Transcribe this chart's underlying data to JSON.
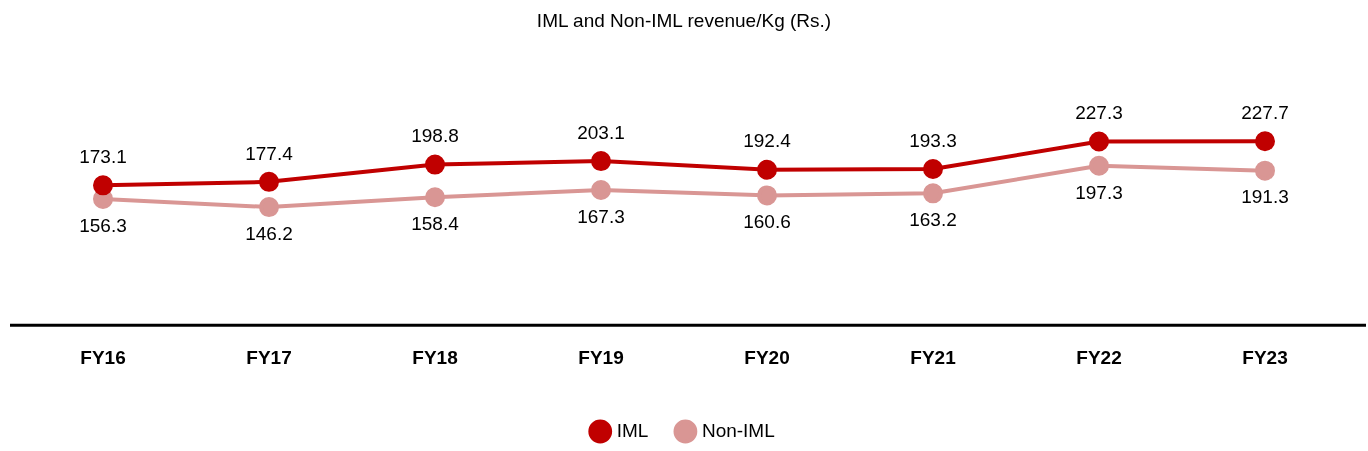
{
  "chart_data": {
    "type": "line",
    "title": "IML and Non-IML revenue/Kg (Rs.)",
    "categories": [
      "FY16",
      "FY17",
      "FY18",
      "FY19",
      "FY20",
      "FY21",
      "FY22",
      "FY23"
    ],
    "series": [
      {
        "name": "IML",
        "color": "#c00000",
        "values": [
          173.1,
          177.4,
          198.8,
          203.1,
          192.4,
          193.3,
          227.3,
          227.7
        ]
      },
      {
        "name": "Non-IML",
        "color": "#d99694",
        "values": [
          156.3,
          146.2,
          158.4,
          167.3,
          160.6,
          163.2,
          197.3,
          191.3
        ]
      }
    ],
    "data_labels": true,
    "marker": "circle",
    "line_style": "solid",
    "grid": false,
    "legend": "bottom"
  }
}
